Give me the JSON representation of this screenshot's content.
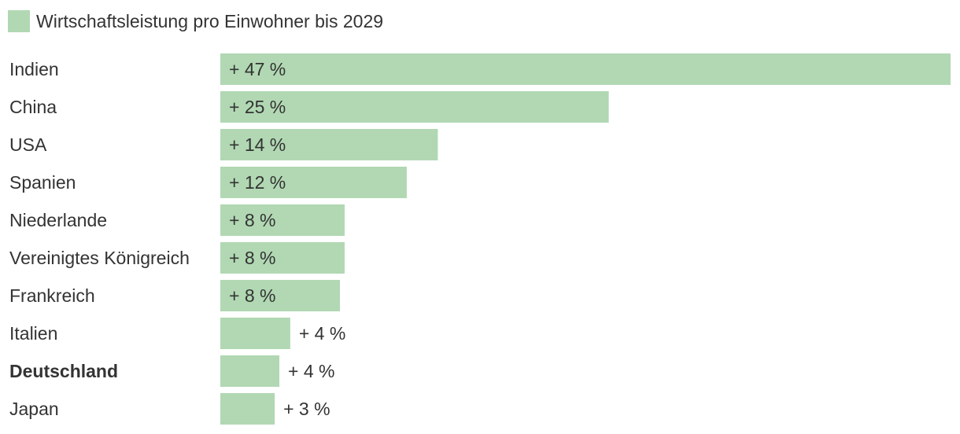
{
  "legend": {
    "label": "Wirtschaftsleistung pro Einwohner bis 2029",
    "color": "#b1d8b3"
  },
  "chart_data": {
    "type": "bar",
    "orientation": "horizontal",
    "categories": [
      "Indien",
      "China",
      "USA",
      "Spanien",
      "Niederlande",
      "Vereinigtes Königreich",
      "Frankreich",
      "Italien",
      "Deutschland",
      "Japan"
    ],
    "series": [
      {
        "name": "Wirtschaftsleistung pro Einwohner bis 2029",
        "values": [
          47,
          25,
          14,
          12,
          8,
          8,
          7.7,
          4.5,
          3.8,
          3.5
        ],
        "labels": [
          "+ 47 %",
          "+ 25 %",
          "+ 14 %",
          "+ 12 %",
          "+ 8 %",
          "+ 8 %",
          "+ 8 %",
          "+ 4 %",
          "+ 4 %",
          "+ 3 %"
        ]
      }
    ],
    "highlight": "Deutschland",
    "bar_color": "#b1d8b3",
    "xlim": [
      0,
      47
    ],
    "grid": false,
    "legend_position": "top-left",
    "title": "",
    "xlabel": "",
    "ylabel": ""
  }
}
